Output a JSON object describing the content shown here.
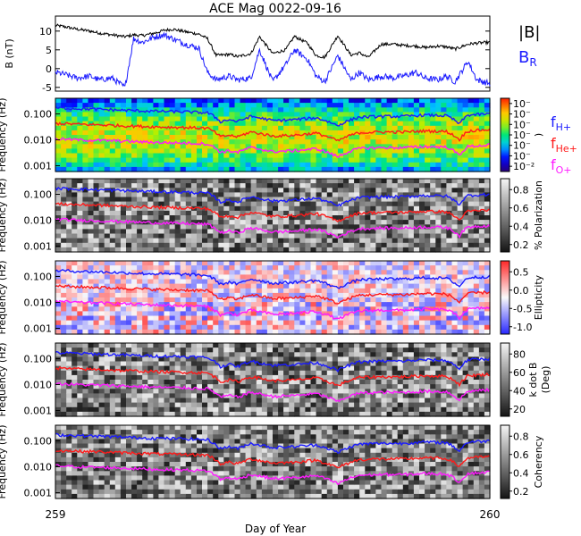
{
  "title": "ACE Mag 0022-09-16",
  "xlabel": "Day of Year",
  "x_tick_labels": [
    "259",
    "260"
  ],
  "colors": {
    "magnitude": "#000000",
    "br": "#1a1aff",
    "fH": "#1a1aff",
    "fHe": "#ff1a1a",
    "fO": "#ff1aff"
  },
  "chart_data": [
    {
      "type": "line",
      "panel": "magnetic-field",
      "ylabel": "B (nT)",
      "ylim": [
        -6,
        14
      ],
      "yticks": [
        -5,
        0,
        5,
        10
      ],
      "x_range": [
        259,
        260
      ],
      "series": [
        {
          "name": "|B|",
          "key": "bmag",
          "x": [
            259.0,
            259.02,
            259.05,
            259.08,
            259.1,
            259.13,
            259.16,
            259.18,
            259.2,
            259.23,
            259.25,
            259.27,
            259.3,
            259.33,
            259.35,
            259.37,
            259.4,
            259.42,
            259.45,
            259.47,
            259.5,
            259.53,
            259.55,
            259.58,
            259.6,
            259.62,
            259.65,
            259.68,
            259.7,
            259.72,
            259.75,
            259.78,
            259.8,
            259.83,
            259.85,
            259.88,
            259.9,
            259.92,
            259.95,
            259.97,
            260.0
          ],
          "y": [
            11.5,
            11.2,
            10.5,
            10.0,
            9.5,
            9.0,
            8.5,
            9.0,
            8.8,
            9.5,
            10.2,
            10.5,
            9.8,
            9.2,
            8.0,
            3.5,
            3.8,
            3.2,
            4.0,
            8.5,
            4.0,
            5.0,
            8.6,
            6.8,
            3.5,
            3.0,
            8.8,
            3.6,
            4.2,
            3.0,
            6.5,
            6.5,
            6.2,
            6.0,
            5.6,
            6.0,
            5.8,
            5.2,
            6.5,
            6.8,
            7.0
          ]
        },
        {
          "name": "B",
          "subscript": "R",
          "key": "br",
          "x": [
            259.0,
            259.02,
            259.05,
            259.08,
            259.1,
            259.13,
            259.16,
            259.18,
            259.2,
            259.23,
            259.25,
            259.27,
            259.3,
            259.33,
            259.35,
            259.37,
            259.4,
            259.42,
            259.45,
            259.47,
            259.5,
            259.53,
            259.55,
            259.58,
            259.6,
            259.62,
            259.65,
            259.68,
            259.7,
            259.72,
            259.75,
            259.78,
            259.8,
            259.83,
            259.85,
            259.88,
            259.9,
            259.92,
            259.95,
            259.97,
            260.0
          ],
          "y": [
            -1.0,
            -1.5,
            -2.5,
            -2.0,
            -3.0,
            -2.5,
            -5.0,
            8.0,
            7.0,
            8.5,
            9.0,
            8.0,
            6.5,
            5.5,
            -1.0,
            -3.0,
            -2.0,
            -3.0,
            -2.5,
            5.0,
            -3.5,
            1.0,
            5.0,
            2.5,
            -2.0,
            -3.5,
            3.5,
            -3.0,
            -1.0,
            -3.0,
            -2.0,
            -2.5,
            -2.0,
            -1.0,
            -2.5,
            -3.0,
            -2.0,
            -3.5,
            2.0,
            -3.0,
            -4.0
          ]
        }
      ]
    },
    {
      "type": "heatmap",
      "panel": "power",
      "ylabel": "Frequency (Hz)",
      "ylim": [
        0.0006,
        0.4
      ],
      "yscale": "log",
      "yticks": [
        0.001,
        0.01,
        0.1
      ],
      "ytick_labels": [
        "0.001",
        "0.010",
        "0.100"
      ],
      "colorbar_label": ")",
      "colorbar_ticks": [
        "10⁻²",
        "10⁻",
        "10⁻",
        "10⁻",
        "10⁻",
        "10⁻",
        "10⁻"
      ],
      "colormap": "rainbow",
      "series_legend": [
        {
          "name": "f",
          "subscript": "H+"
        },
        {
          "name": "f",
          "subscript": "He+"
        },
        {
          "name": "f",
          "subscript": "O+"
        }
      ]
    },
    {
      "type": "heatmap",
      "panel": "polarization",
      "ylabel": "Frequency (Hz)",
      "ylim": [
        0.0006,
        0.4
      ],
      "yscale": "log",
      "yticks": [
        0.001,
        0.01,
        0.1
      ],
      "ytick_labels": [
        "0.001",
        "0.010",
        "0.100"
      ],
      "colorbar_label": "% Polarization",
      "colorbar_ticks": [
        "0.2",
        "0.4",
        "0.6",
        "0.8"
      ],
      "colormap": "gray"
    },
    {
      "type": "heatmap",
      "panel": "ellipticity",
      "ylabel": "Frequency (Hz)",
      "ylim": [
        0.0006,
        0.4
      ],
      "yscale": "log",
      "yticks": [
        0.001,
        0.01,
        0.1
      ],
      "ytick_labels": [
        "0.001",
        "0.010",
        "0.100"
      ],
      "colorbar_label": "Ellipticity",
      "colorbar_ticks": [
        "-1.0",
        "-0.5",
        "0.0",
        "0.5"
      ],
      "colormap": "blue-white-red"
    },
    {
      "type": "heatmap",
      "panel": "kdotb",
      "ylabel": "Frequency (Hz)",
      "ylim": [
        0.0006,
        0.4
      ],
      "yscale": "log",
      "yticks": [
        0.001,
        0.01,
        0.1
      ],
      "ytick_labels": [
        "0.001",
        "0.010",
        "0.100"
      ],
      "colorbar_label": "k dot B",
      "colorbar_label2": "(Deg)",
      "colorbar_ticks": [
        "20",
        "40",
        "60",
        "80"
      ],
      "colormap": "gray"
    },
    {
      "type": "heatmap",
      "panel": "coherency",
      "ylabel": "Frequency (Hz)",
      "ylim": [
        0.0006,
        0.4
      ],
      "yscale": "log",
      "yticks": [
        0.001,
        0.01,
        0.1
      ],
      "ytick_labels": [
        "0.001",
        "0.010",
        "0.100"
      ],
      "colorbar_label": "Coherency",
      "colorbar_ticks": [
        "0.2",
        "0.4",
        "0.6",
        "0.8"
      ],
      "colormap": "gray"
    }
  ],
  "gyrofrequency_lines": {
    "x": [
      259.0,
      259.05,
      259.1,
      259.15,
      259.2,
      259.25,
      259.3,
      259.35,
      259.38,
      259.4,
      259.42,
      259.45,
      259.5,
      259.55,
      259.6,
      259.65,
      259.7,
      259.75,
      259.8,
      259.85,
      259.9,
      259.93,
      259.95,
      260.0
    ],
    "fH": [
      0.17,
      0.16,
      0.15,
      0.14,
      0.13,
      0.125,
      0.12,
      0.11,
      0.05,
      0.06,
      0.05,
      0.08,
      0.055,
      0.06,
      0.07,
      0.035,
      0.075,
      0.08,
      0.08,
      0.09,
      0.085,
      0.04,
      0.09,
      0.1
    ],
    "fHe": [
      0.043,
      0.04,
      0.038,
      0.035,
      0.033,
      0.031,
      0.03,
      0.028,
      0.013,
      0.015,
      0.013,
      0.02,
      0.014,
      0.015,
      0.018,
      0.009,
      0.019,
      0.02,
      0.02,
      0.022,
      0.021,
      0.01,
      0.022,
      0.025
    ],
    "fO": [
      0.011,
      0.01,
      0.0095,
      0.009,
      0.0083,
      0.0078,
      0.0075,
      0.007,
      0.0033,
      0.0038,
      0.0033,
      0.005,
      0.0035,
      0.0038,
      0.0045,
      0.0022,
      0.0047,
      0.005,
      0.005,
      0.0055,
      0.0053,
      0.0025,
      0.0055,
      0.0063
    ]
  }
}
